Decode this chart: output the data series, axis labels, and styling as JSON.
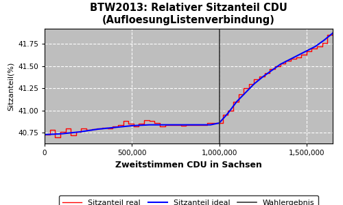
{
  "title": "BTW2013: Relativer Sitzanteil CDU\n(AufloesungListenverbindung)",
  "xlabel": "Zweitstimmen CDU in Sachsen",
  "ylabel": "Sitzanteil(%)",
  "bg_color": "#bebebe",
  "grid_color": "white",
  "wahlergebnis_x": 1000000,
  "xlim": [
    0,
    1650000
  ],
  "ylim": [
    40.63,
    41.92
  ],
  "yticks": [
    40.75,
    41.0,
    41.25,
    41.5,
    41.75
  ],
  "xticks": [
    0,
    500000,
    1000000,
    1500000
  ],
  "xtick_labels": [
    "0",
    "500,000",
    "1,000,000",
    "1,500,000"
  ],
  "legend_labels": [
    "Sitzanteil real",
    "Sitzanteil ideal",
    "Wahlergebnis"
  ],
  "real_x": [
    0,
    30000,
    60000,
    90000,
    120000,
    150000,
    180000,
    210000,
    240000,
    270000,
    300000,
    330000,
    360000,
    390000,
    420000,
    450000,
    480000,
    510000,
    540000,
    570000,
    600000,
    630000,
    660000,
    690000,
    720000,
    750000,
    780000,
    810000,
    840000,
    870000,
    900000,
    930000,
    960000,
    990000,
    1020000,
    1050000,
    1080000,
    1110000,
    1140000,
    1170000,
    1200000,
    1230000,
    1260000,
    1290000,
    1320000,
    1350000,
    1380000,
    1410000,
    1440000,
    1470000,
    1500000,
    1530000,
    1560000,
    1590000,
    1620000,
    1650000
  ],
  "real_y": [
    40.73,
    40.78,
    40.7,
    40.76,
    40.8,
    40.72,
    40.76,
    40.8,
    40.78,
    40.79,
    40.8,
    40.81,
    40.8,
    40.82,
    40.84,
    40.88,
    40.85,
    40.82,
    40.85,
    40.89,
    40.88,
    40.86,
    40.82,
    40.84,
    40.84,
    40.84,
    40.83,
    40.84,
    40.84,
    40.84,
    40.84,
    40.86,
    40.86,
    40.86,
    40.95,
    41.0,
    41.1,
    41.18,
    41.25,
    41.3,
    41.35,
    41.38,
    41.42,
    41.47,
    41.5,
    41.53,
    41.56,
    41.58,
    41.6,
    41.63,
    41.67,
    41.7,
    41.72,
    41.76,
    41.85,
    41.88
  ],
  "ideal_x": [
    0,
    100000,
    200000,
    300000,
    400000,
    500000,
    600000,
    700000,
    800000,
    900000,
    950000,
    1000000,
    1050000,
    1100000,
    1150000,
    1200000,
    1250000,
    1300000,
    1350000,
    1400000,
    1450000,
    1500000,
    1550000,
    1600000,
    1650000
  ],
  "ideal_y": [
    40.73,
    40.74,
    40.76,
    40.79,
    40.81,
    40.83,
    40.84,
    40.84,
    40.84,
    40.84,
    40.84,
    40.86,
    40.97,
    41.1,
    41.2,
    41.3,
    41.38,
    41.45,
    41.52,
    41.57,
    41.62,
    41.67,
    41.72,
    41.79,
    41.87
  ]
}
